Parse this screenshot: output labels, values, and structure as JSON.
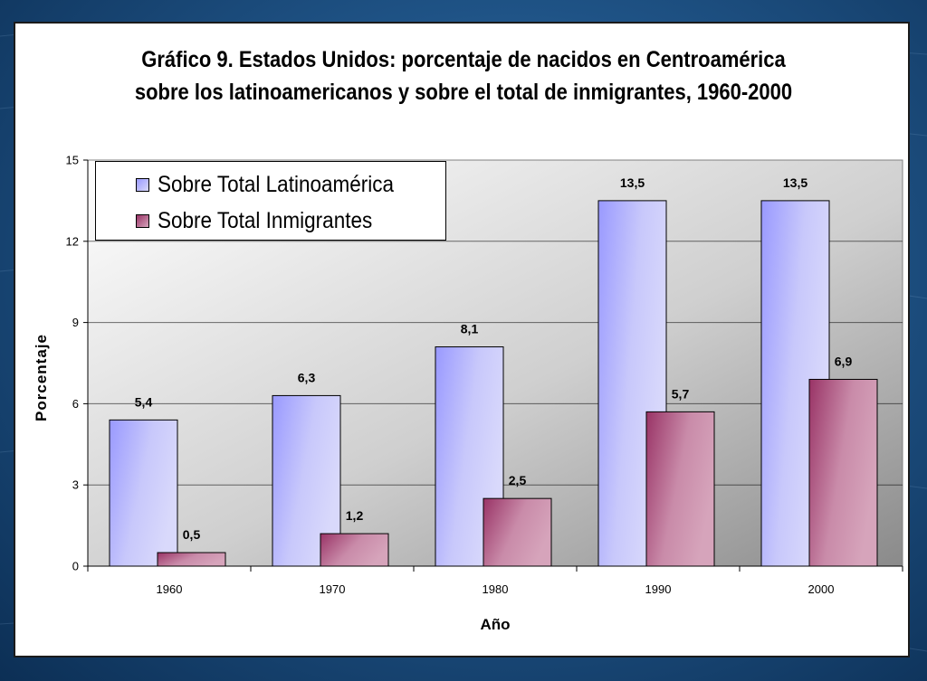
{
  "chart_data": {
    "type": "bar",
    "title_lines": [
      "Gráfico 9.  Estados Unidos: porcentaje de nacidos en Centroamérica",
      "sobre los latinoamericanos y sobre el total de inmigrantes, 1960-2000"
    ],
    "xlabel": "Año",
    "ylabel": "Porcentaje",
    "categories": [
      "1960",
      "1970",
      "1980",
      "1990",
      "2000"
    ],
    "ylim": [
      0,
      15
    ],
    "yticks": [
      0,
      3,
      6,
      9,
      12,
      15
    ],
    "ytick_labels": [
      "0",
      "3",
      "6",
      "9",
      "12",
      "15"
    ],
    "grid": true,
    "legend_position": "top-left",
    "series": [
      {
        "name": "Sobre Total Latinoamérica",
        "values": [
          5.4,
          6.3,
          8.1,
          13.5,
          13.5
        ],
        "labels": [
          "5,4",
          "6,3",
          "8,1",
          "13,5",
          "13,5"
        ],
        "color": "#9999FF"
      },
      {
        "name": "Sobre Total Inmigrantes",
        "values": [
          0.5,
          1.2,
          2.5,
          5.7,
          6.9
        ],
        "labels": [
          "0,5",
          "1,2",
          "2,5",
          "5,7",
          "6,9"
        ],
        "color": "#993366"
      }
    ]
  }
}
